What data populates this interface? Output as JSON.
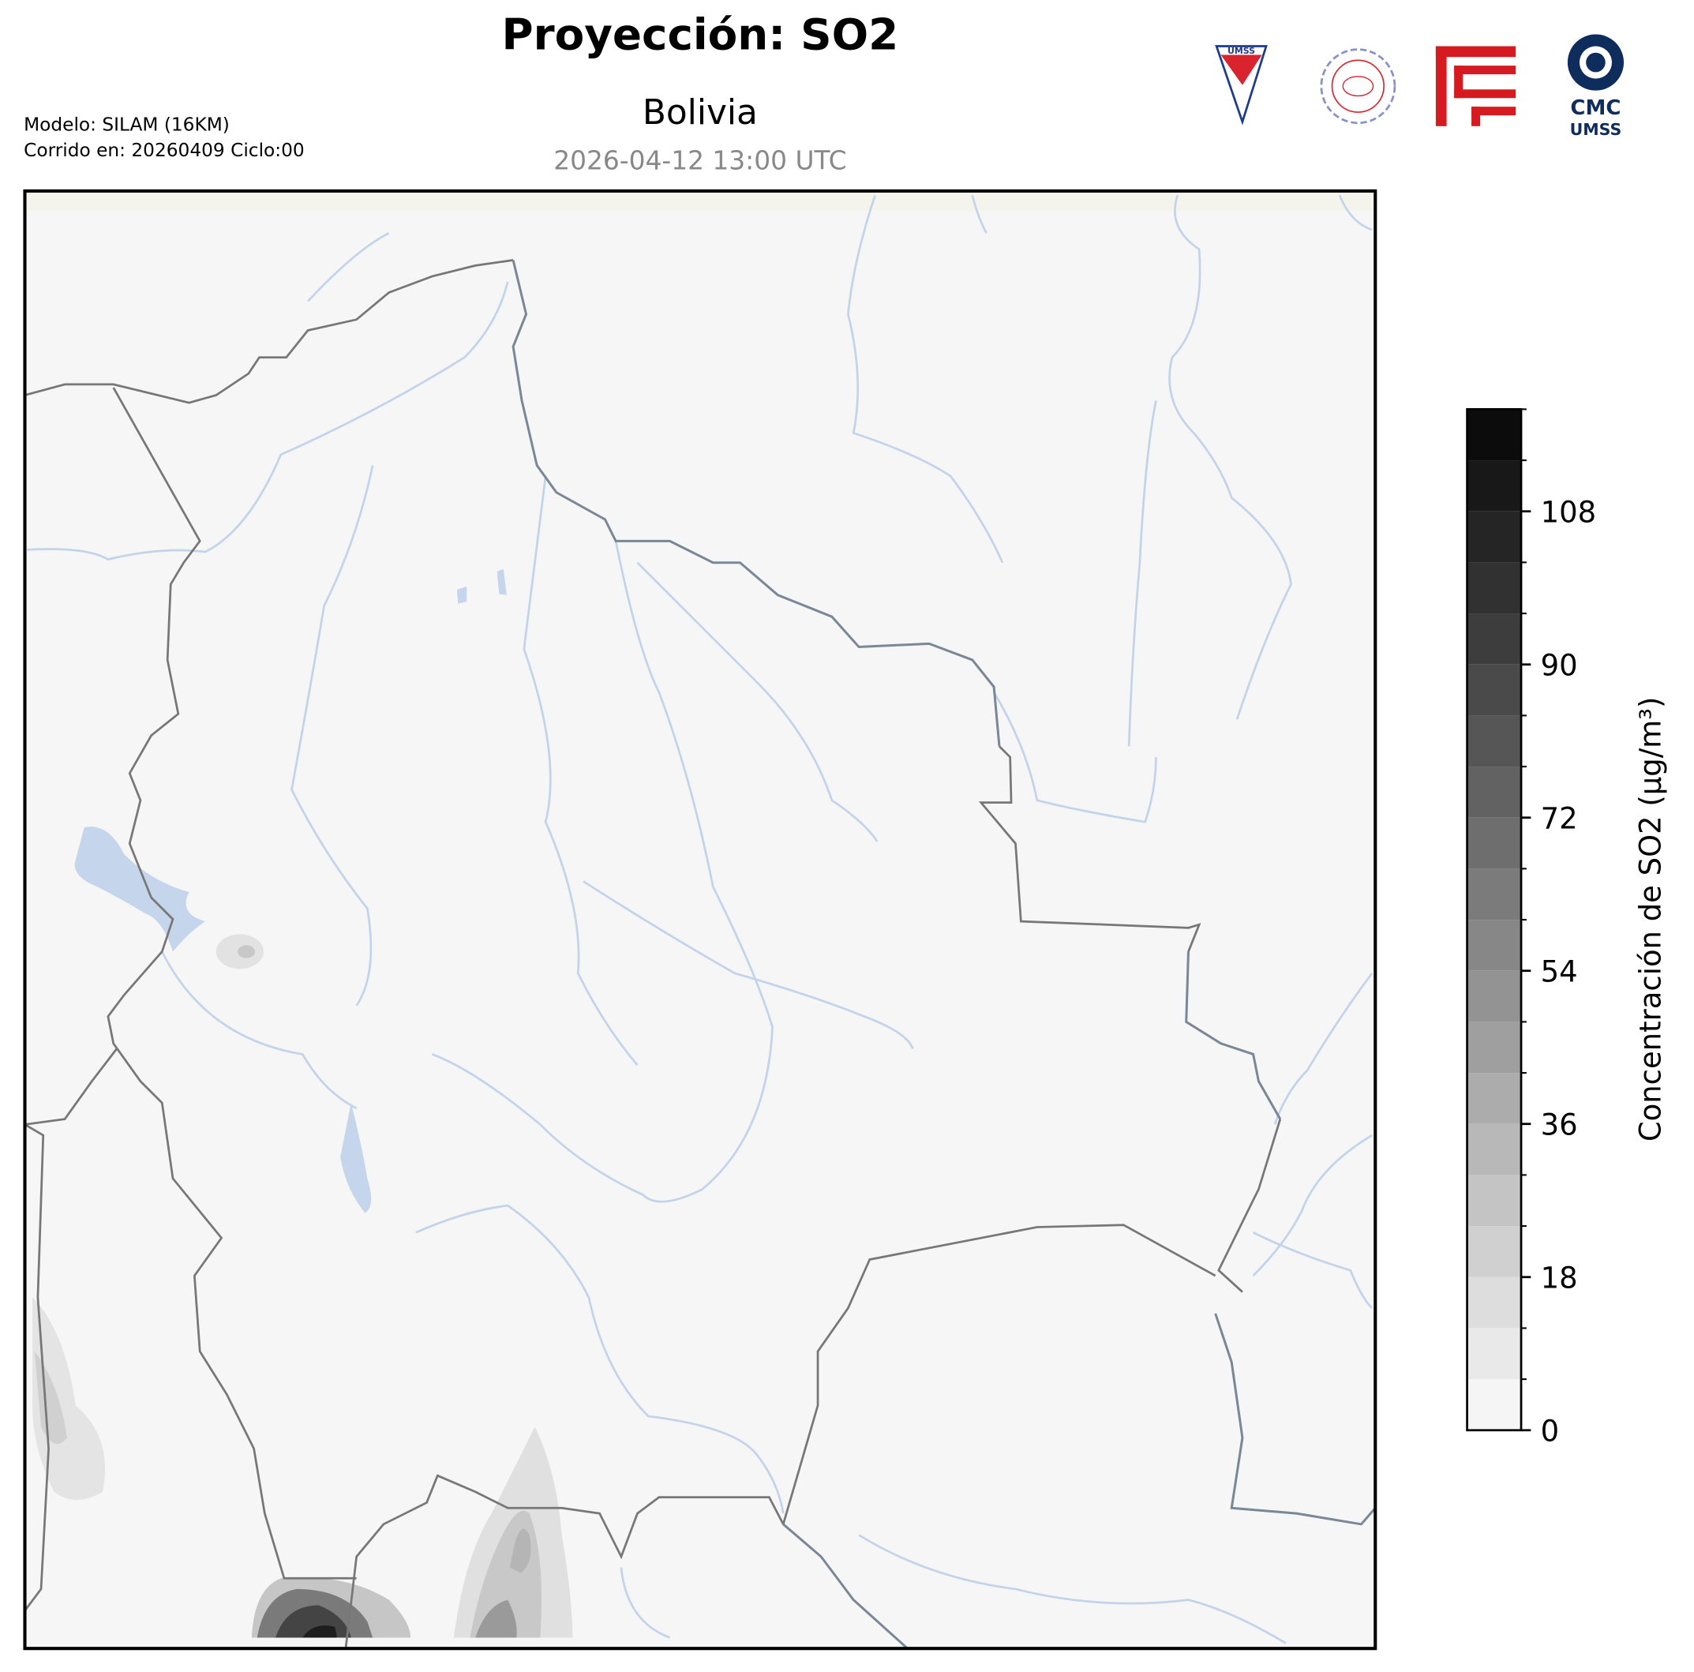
{
  "header": {
    "title": "Proyección: SO2",
    "subtitle": "Bolivia",
    "timestamp": "2026-04-12 13:00 UTC",
    "model": "Modelo: SILAM (16KM)",
    "run": "Corrido en: 20260409 Ciclo:00"
  },
  "logos": {
    "umss": "UMSS",
    "cmc": "CMC",
    "cmc_sub": "UMSS"
  },
  "colorbar": {
    "label": "Concentración de SO2 (µg/m³)",
    "lim": [
      0,
      120
    ],
    "ticks": [
      0,
      18,
      36,
      54,
      72,
      90,
      108
    ],
    "levels": [
      0,
      6,
      12,
      18,
      24,
      30,
      36,
      42,
      48,
      54,
      60,
      66,
      72,
      78,
      84,
      90,
      96,
      102,
      108,
      114,
      120
    ]
  }
}
